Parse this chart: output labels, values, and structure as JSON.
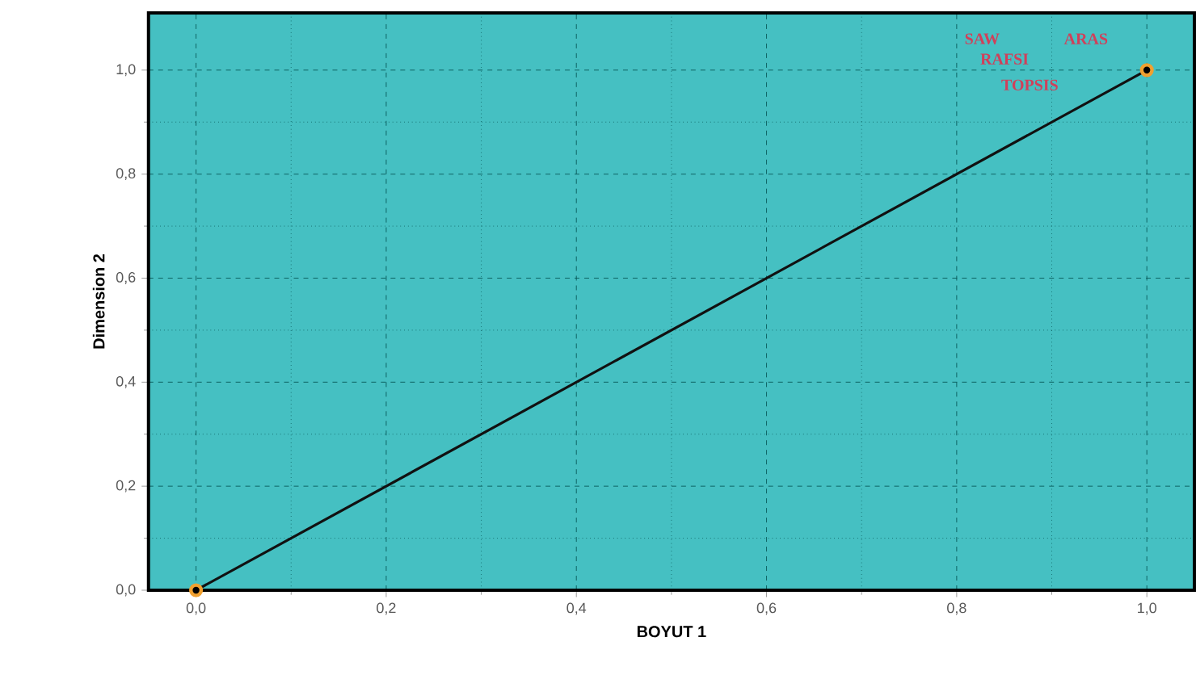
{
  "chart_data": {
    "type": "line",
    "xlabel": "BOYUT 1",
    "ylabel": "Dimension 2",
    "x": [
      0,
      1
    ],
    "values": [
      0,
      1
    ],
    "color": "#111111",
    "marker": "circle",
    "line_style": "solid",
    "xlim": [
      -0.05,
      1.05
    ],
    "ylim": [
      0,
      1.11
    ],
    "xticks": [
      {
        "value": 0,
        "label": "0,0"
      },
      {
        "value": 0.2,
        "label": "0,2"
      },
      {
        "value": 0.4,
        "label": "0,4"
      },
      {
        "value": 0.6,
        "label": "0,6"
      },
      {
        "value": 0.8,
        "label": "0,8"
      },
      {
        "value": 1,
        "label": "1,0"
      }
    ],
    "yticks": [
      {
        "value": 0,
        "label": "0,0"
      },
      {
        "value": 0.2,
        "label": "0,2"
      },
      {
        "value": 0.4,
        "label": "0,4"
      },
      {
        "value": 0.6,
        "label": "0,6"
      },
      {
        "value": 0.8,
        "label": "0,8"
      },
      {
        "value": 1,
        "label": "1,0"
      }
    ],
    "grid": true,
    "annotations": [
      "SAW",
      "ARAS",
      "RAFSI",
      "TOPSIS"
    ]
  }
}
